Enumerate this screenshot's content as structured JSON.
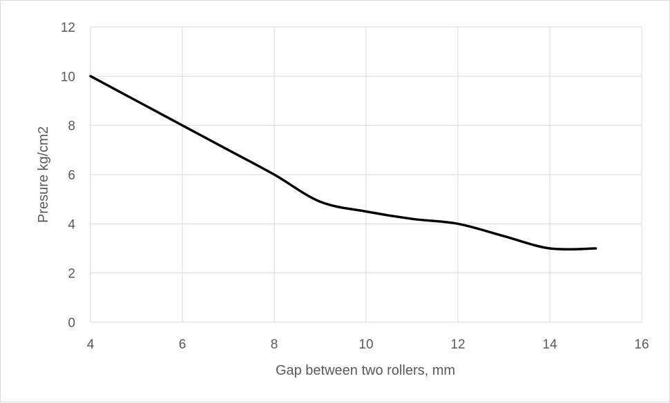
{
  "chart_data": {
    "type": "line",
    "title": "",
    "xlabel": "Gap between two rollers, mm",
    "ylabel": "Presure kg/cm2",
    "xlim": [
      4,
      16
    ],
    "ylim": [
      0,
      12
    ],
    "x_ticks": [
      4,
      6,
      8,
      10,
      12,
      14,
      16
    ],
    "y_ticks": [
      0,
      2,
      4,
      6,
      8,
      10,
      12
    ],
    "grid": true,
    "legend": "none",
    "smooth": true,
    "series": [
      {
        "color": "#000000",
        "x": [
          4,
          5,
          6,
          7,
          8,
          9,
          10,
          11,
          12,
          13,
          14,
          15
        ],
        "y": [
          10,
          9,
          8,
          7,
          6,
          4.9,
          4.5,
          4.2,
          4.0,
          3.5,
          3.0,
          3.0
        ]
      }
    ]
  }
}
